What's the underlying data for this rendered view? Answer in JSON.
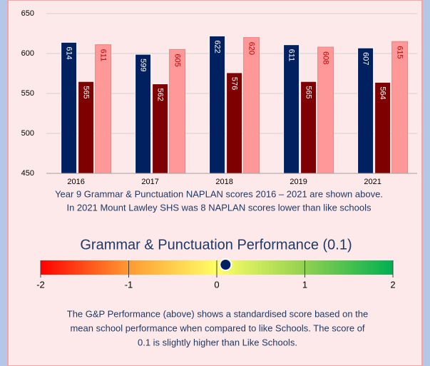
{
  "chart_data": [
    {
      "type": "bar",
      "categories": [
        "2016",
        "2017",
        "2018",
        "2019",
        "2021"
      ],
      "series": [
        {
          "color": "#002060",
          "label_color": "#ffffff",
          "values": [
            614,
            599,
            622,
            611,
            607
          ]
        },
        {
          "color": "#7f0000",
          "label_color": "#ffffff",
          "values": [
            565,
            562,
            576,
            565,
            564
          ]
        },
        {
          "color": "#ff9999",
          "label_color": "#c00000",
          "values": [
            611,
            605,
            620,
            608,
            615
          ]
        }
      ],
      "ylim": [
        450,
        650
      ],
      "yticks": [
        450,
        500,
        550,
        600,
        650
      ],
      "grid": true,
      "annotations": [
        "Year 9 Grammar & Punctuation NAPLAN scores 2016 – 2021 are shown above.",
        "In 2021 Mount Lawley SHS was 8 NAPLAN scores lower than like schools"
      ]
    },
    {
      "type": "gauge",
      "title": "Grammar & Punctuation Performance (0.1)",
      "value": 0.1,
      "xlim": [
        -2,
        2
      ],
      "xticks": [
        -2,
        -1,
        0,
        1,
        2
      ],
      "annotations": [
        "The G&P Performance (above) shows a standardised score based on the",
        "mean school performance when compared to like Schools. The score of",
        "0.1 is slightly higher than Like Schools."
      ]
    }
  ]
}
